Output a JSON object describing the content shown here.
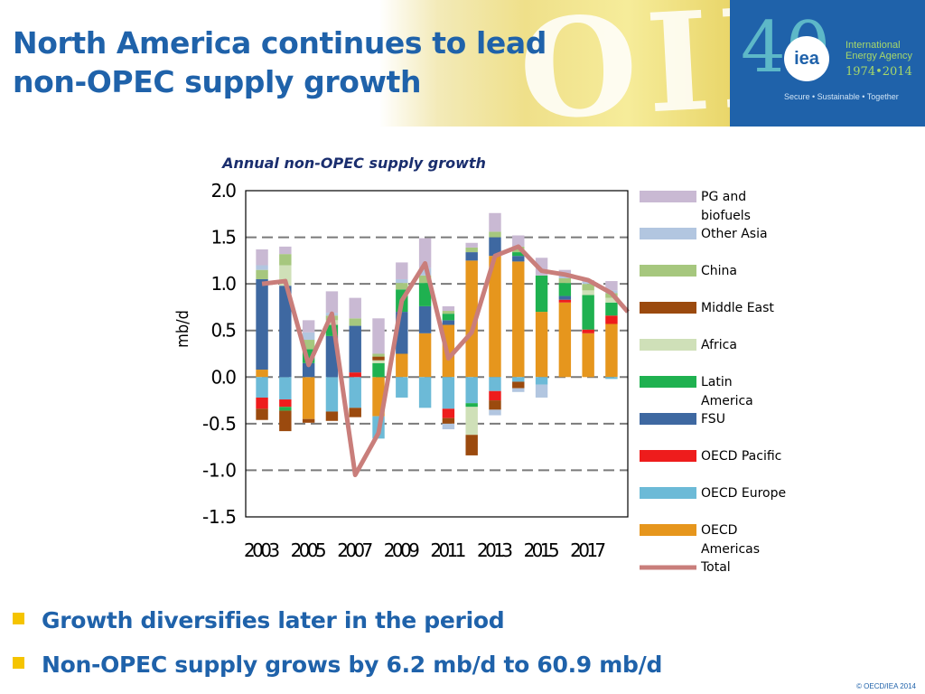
{
  "header": {
    "title_lines": [
      "North America continues to lead",
      "non-OPEC supply growth"
    ],
    "background_word": "OIL"
  },
  "logo": {
    "forty": "40",
    "circle_text": "iea",
    "name": "International Energy Agency",
    "years": "1974•2014",
    "tagline": "Secure • Sustainable • Together",
    "colors": {
      "panel": "#1f62aa",
      "forty": "#5db8c8",
      "text": "#a7d86a"
    }
  },
  "chart_data": {
    "type": "bar",
    "stacked": true,
    "title": "Annual non-OPEC supply growth",
    "ylabel": "mb/d",
    "xlabel": "",
    "ylim": [
      -1.5,
      2.0
    ],
    "yticks": [
      "2.0",
      "1.5",
      "1.0",
      "0.5",
      "0.0",
      "-0.5",
      "-1.0",
      "-1.5"
    ],
    "grid": "dashed horizontal",
    "legend_position": "right",
    "categories": [
      "2003",
      "2004",
      "2005",
      "2006",
      "2007",
      "2008",
      "2009",
      "2010",
      "2011",
      "2012",
      "2013",
      "2014",
      "2015",
      "2016",
      "2017",
      "2018"
    ],
    "xtick_labels": [
      "2003",
      "2005",
      "2007",
      "2009",
      "2011",
      "2013",
      "2015",
      "2017"
    ],
    "series": [
      {
        "name": "OECD Americas",
        "color": "#e6961d",
        "values": [
          0.08,
          0.0,
          -0.45,
          0.0,
          0.0,
          -0.42,
          0.25,
          0.47,
          0.56,
          1.25,
          1.3,
          1.24,
          0.7,
          0.8,
          0.47,
          0.57
        ]
      },
      {
        "name": "OECD Europe",
        "color": "#6cbad7",
        "values": [
          -0.22,
          -0.24,
          0.0,
          -0.37,
          -0.33,
          -0.24,
          -0.22,
          -0.33,
          -0.34,
          -0.28,
          -0.15,
          -0.05,
          -0.08,
          0.0,
          0.0,
          -0.02
        ]
      },
      {
        "name": "OECD Pacific",
        "color": "#ee1c1c",
        "values": [
          -0.12,
          -0.08,
          0.0,
          0.0,
          0.05,
          0.0,
          0.0,
          0.0,
          -0.1,
          0.0,
          -0.1,
          0.0,
          0.0,
          0.03,
          0.04,
          0.09
        ]
      },
      {
        "name": "FSU",
        "color": "#3e68a1",
        "values": [
          0.97,
          0.98,
          0.15,
          0.44,
          0.5,
          0.0,
          0.45,
          0.29,
          0.05,
          0.09,
          0.2,
          0.06,
          0.0,
          0.04,
          0.0,
          0.0
        ]
      },
      {
        "name": "Latin America",
        "color": "#1fb150",
        "values": [
          0.0,
          -0.04,
          0.15,
          0.12,
          0.0,
          0.15,
          0.24,
          0.25,
          0.07,
          -0.04,
          0.0,
          0.04,
          0.39,
          0.14,
          0.37,
          0.14
        ]
      },
      {
        "name": "Africa",
        "color": "#cfe0b8",
        "values": [
          0.0,
          0.22,
          0.0,
          0.05,
          0.0,
          0.03,
          0.0,
          0.0,
          0.0,
          -0.3,
          0.0,
          0.0,
          0.0,
          0.0,
          0.05,
          0.05
        ]
      },
      {
        "name": "Middle East",
        "color": "#9b4a0e",
        "values": [
          -0.12,
          -0.22,
          -0.04,
          -0.1,
          -0.1,
          0.04,
          0.0,
          0.0,
          -0.06,
          -0.22,
          -0.1,
          -0.07,
          0.0,
          0.0,
          0.0,
          0.0
        ]
      },
      {
        "name": "China",
        "color": "#a6c77e",
        "values": [
          0.1,
          0.12,
          0.1,
          0.05,
          0.08,
          0.03,
          0.07,
          0.08,
          0.03,
          0.05,
          0.06,
          0.06,
          0.0,
          0.05,
          0.07,
          0.05
        ]
      },
      {
        "name": "Other Asia",
        "color": "#b2c6e0",
        "values": [
          0.05,
          0.0,
          0.08,
          0.03,
          0.0,
          0.0,
          0.04,
          0.08,
          -0.06,
          0.0,
          -0.06,
          -0.04,
          -0.14,
          0.03,
          0.02,
          0.03
        ]
      },
      {
        "name": "PG and biofuels",
        "color": "#c9b9d3",
        "values": [
          0.17,
          0.08,
          0.13,
          0.23,
          0.22,
          0.38,
          0.18,
          0.32,
          0.05,
          0.05,
          0.2,
          0.12,
          0.19,
          0.06,
          0.02,
          0.1
        ]
      }
    ],
    "total": {
      "name": "Total",
      "color": "#c97e7b",
      "values": [
        1.0,
        1.03,
        0.13,
        0.68,
        -1.05,
        -0.6,
        0.82,
        1.22,
        0.2,
        0.48,
        1.3,
        1.4,
        1.14,
        1.1,
        1.04,
        0.9,
        0.7
      ]
    },
    "total_extends_to": "2019"
  },
  "bullets": [
    "Growth diversifies later in the period",
    "Non-OPEC supply grows by 6.2 mb/d to 60.9 mb/d"
  ],
  "footer": {
    "copyright": "© OECD/IEA 2014"
  }
}
